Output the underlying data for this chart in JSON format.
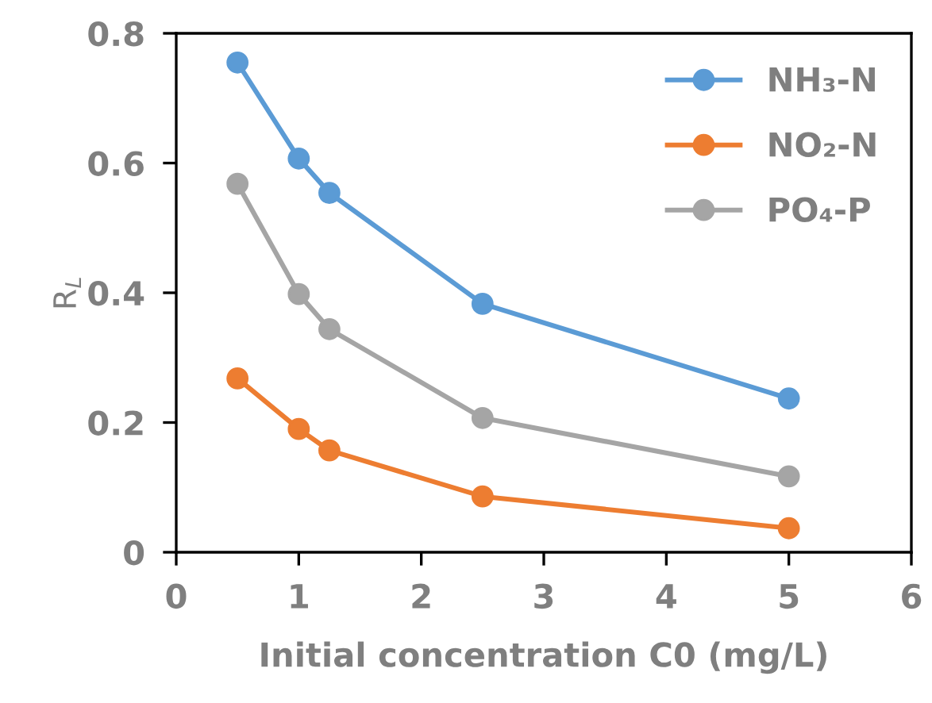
{
  "chart_data": {
    "type": "line",
    "xlabel": "Initial concentration C0 (mg/L)",
    "ylabel": "R$_{L}$",
    "x": [
      0.5,
      1,
      1.25,
      2.5,
      5
    ],
    "series": [
      {
        "name": "NH₃-N",
        "color": "#5b9bd5",
        "values": [
          0.755,
          0.607,
          0.554,
          0.383,
          0.237
        ]
      },
      {
        "name": "NO₂-N",
        "color": "#ed7d31",
        "values": [
          0.268,
          0.19,
          0.157,
          0.086,
          0.037
        ]
      },
      {
        "name": "PO₄-P",
        "color": "#a5a5a5",
        "values": [
          0.568,
          0.398,
          0.344,
          0.207,
          0.117
        ]
      }
    ],
    "xlim": [
      0,
      6
    ],
    "xticks": [
      0,
      1,
      2,
      3,
      4,
      5,
      6
    ],
    "ylim": [
      0,
      0.8
    ],
    "yticks": [
      0,
      0.2,
      0.4,
      0.6,
      0.8
    ],
    "marker": "circle",
    "line_style": "solid",
    "grid": false,
    "legend": "top right"
  }
}
